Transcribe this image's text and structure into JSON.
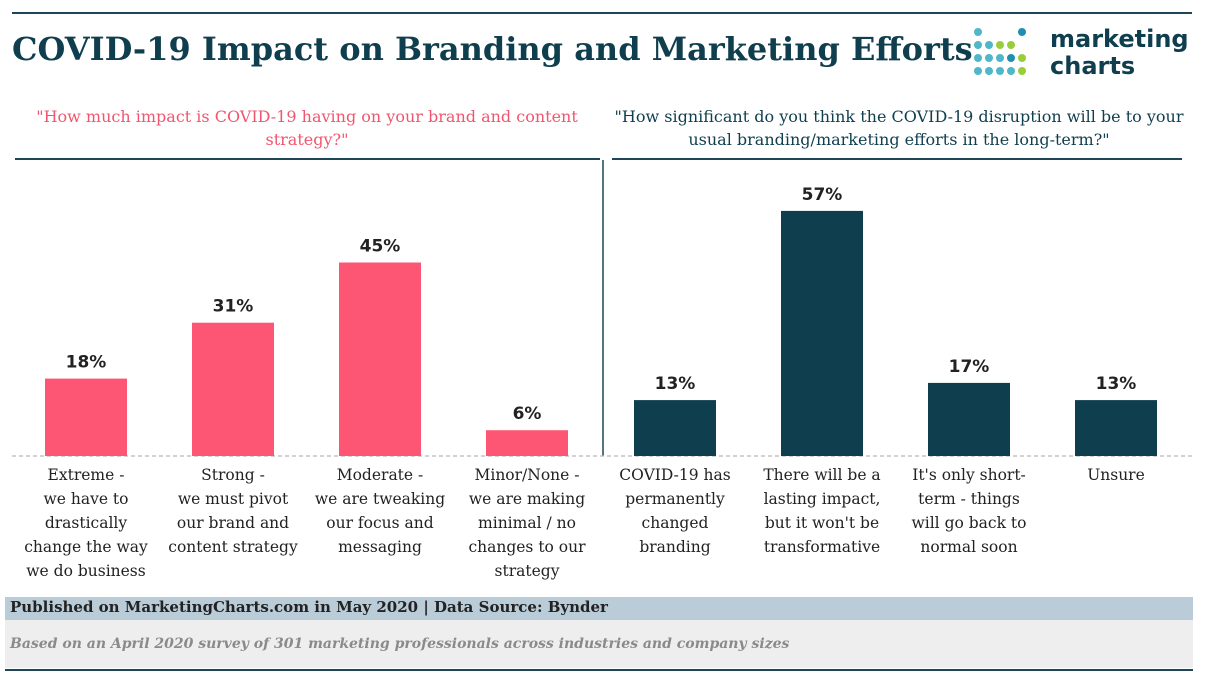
{
  "header": {
    "title": "COVID-19 Impact on Branding and Marketing Efforts",
    "logo_line1": "marketing",
    "logo_line2": "charts"
  },
  "questions": {
    "left": "\"How much impact is COVID-19 having on your brand and content strategy?\"",
    "right": "\"How significant do you think the COVID-19 disruption will be to your usual branding/marketing efforts in the long-term?\""
  },
  "colors": {
    "left_series": "#fd5674",
    "right_series": "#0f3e4e",
    "dots": [
      "#4fb7c9",
      "#9acd3c",
      "#1f8fb0"
    ]
  },
  "chart_data": [
    {
      "type": "bar",
      "title": "\"How much impact is COVID-19 having on your brand and content strategy?\"",
      "categories": [
        "Extreme - we have to drastically change the way we do business",
        "Strong - we must pivot our brand and content strategy",
        "Moderate - we are tweaking our focus and messaging",
        "Minor/None - we are making minimal / no changes to our strategy"
      ],
      "category_lines": [
        [
          "Extreme -",
          "we have to",
          "drastically",
          "change the way",
          "we do business"
        ],
        [
          "Strong -",
          "we must pivot",
          "our brand and",
          "content strategy"
        ],
        [
          "Moderate -",
          "we are tweaking",
          "our focus and",
          "messaging"
        ],
        [
          "Minor/None -",
          "we are making",
          "minimal / no",
          "changes to our",
          "strategy"
        ]
      ],
      "values": [
        18,
        31,
        45,
        6
      ],
      "value_labels": [
        "18%",
        "31%",
        "45%",
        "6%"
      ],
      "unit": "%",
      "ylim": [
        0,
        60
      ]
    },
    {
      "type": "bar",
      "title": "\"How significant do you think the COVID-19 disruption will be to your usual branding/marketing efforts in the long-term?\"",
      "categories": [
        "COVID-19 has permanently changed branding",
        "There will be a lasting impact, but it won't be transformative",
        "It's only short-term - things will go back to normal soon",
        "Unsure"
      ],
      "category_lines": [
        [
          "COVID-19 has",
          "permanently",
          "changed",
          "branding"
        ],
        [
          "There will be a",
          "lasting impact,",
          "but it won't be",
          "transformative"
        ],
        [
          "It's only short-",
          "term - things",
          "will go back to",
          "normal soon"
        ],
        [
          "Unsure"
        ]
      ],
      "values": [
        13,
        57,
        17,
        13
      ],
      "value_labels": [
        "13%",
        "57%",
        "17%",
        "13%"
      ],
      "unit": "%",
      "ylim": [
        0,
        60
      ]
    }
  ],
  "footer": {
    "published": "Published on MarketingCharts.com in May 2020 | Data Source: Bynder",
    "note": "Based on an April 2020 survey of 301 marketing professionals across industries and company sizes"
  }
}
